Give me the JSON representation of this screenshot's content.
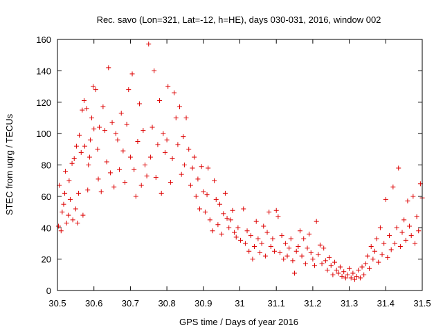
{
  "chart_data": {
    "type": "scatter",
    "title": "Rec. savo (Lon=321, Lat=-12, h=HE), days 030-031, 2016, window 002",
    "xlabel": "GPS time / Days of year 2016",
    "ylabel": "STEC from uqrg / TECUs",
    "xlim": [
      30.5,
      31.5
    ],
    "ylim": [
      0,
      160
    ],
    "xticks": [
      30.5,
      30.6,
      30.7,
      30.8,
      30.9,
      31,
      31.1,
      31.2,
      31.3,
      31.4,
      31.5
    ],
    "xtick_labels": [
      "30.5",
      "30.6",
      "30.7",
      "30.8",
      "30.9",
      "31",
      "31.1",
      "31.2",
      "31.3",
      "31.4",
      "31.5"
    ],
    "yticks": [
      0,
      20,
      40,
      60,
      80,
      100,
      120,
      140,
      160
    ],
    "ytick_labels": [
      "0",
      "20",
      "40",
      "60",
      "80",
      "100",
      "120",
      "140",
      "160"
    ],
    "grid": false,
    "marker": "+",
    "color": "#dd0000",
    "series": [
      {
        "name": "STEC",
        "points": [
          [
            30.503,
            41
          ],
          [
            30.505,
            67
          ],
          [
            30.51,
            38
          ],
          [
            30.513,
            50
          ],
          [
            30.517,
            55
          ],
          [
            30.52,
            62
          ],
          [
            30.522,
            76
          ],
          [
            30.525,
            43
          ],
          [
            30.53,
            48
          ],
          [
            30.532,
            70
          ],
          [
            30.535,
            58
          ],
          [
            30.54,
            81
          ],
          [
            30.542,
            45
          ],
          [
            30.546,
            84
          ],
          [
            30.55,
            52
          ],
          [
            30.552,
            92
          ],
          [
            30.555,
            43
          ],
          [
            30.558,
            62
          ],
          [
            30.56,
            99
          ],
          [
            30.565,
            88
          ],
          [
            30.568,
            115
          ],
          [
            30.57,
            48
          ],
          [
            30.573,
            121
          ],
          [
            30.575,
            92
          ],
          [
            30.58,
            116
          ],
          [
            30.583,
            64
          ],
          [
            30.585,
            80
          ],
          [
            30.588,
            85
          ],
          [
            30.59,
            96
          ],
          [
            30.594,
            110
          ],
          [
            30.598,
            130
          ],
          [
            30.6,
            103
          ],
          [
            30.605,
            128
          ],
          [
            30.61,
            90
          ],
          [
            30.612,
            71
          ],
          [
            30.615,
            104
          ],
          [
            30.62,
            63
          ],
          [
            30.625,
            117
          ],
          [
            30.63,
            102
          ],
          [
            30.635,
            82
          ],
          [
            30.64,
            142
          ],
          [
            30.645,
            75
          ],
          [
            30.65,
            107
          ],
          [
            30.655,
            66
          ],
          [
            30.66,
            100
          ],
          [
            30.665,
            96
          ],
          [
            30.67,
            77
          ],
          [
            30.675,
            113
          ],
          [
            30.68,
            89
          ],
          [
            30.685,
            69
          ],
          [
            30.69,
            106
          ],
          [
            30.695,
            128
          ],
          [
            30.7,
            85
          ],
          [
            30.705,
            138
          ],
          [
            30.71,
            77
          ],
          [
            30.715,
            60
          ],
          [
            30.72,
            95
          ],
          [
            30.725,
            119
          ],
          [
            30.73,
            67
          ],
          [
            30.735,
            102
          ],
          [
            30.74,
            80
          ],
          [
            30.745,
            73
          ],
          [
            30.75,
            157
          ],
          [
            30.755,
            85
          ],
          [
            30.76,
            104
          ],
          [
            30.765,
            140
          ],
          [
            30.77,
            72
          ],
          [
            30.775,
            93
          ],
          [
            30.78,
            121
          ],
          [
            30.785,
            62
          ],
          [
            30.79,
            100
          ],
          [
            30.795,
            88
          ],
          [
            30.8,
            96
          ],
          [
            30.803,
            130
          ],
          [
            30.81,
            69
          ],
          [
            30.815,
            84
          ],
          [
            30.82,
            126
          ],
          [
            30.825,
            110
          ],
          [
            30.83,
            93
          ],
          [
            30.835,
            117
          ],
          [
            30.84,
            74
          ],
          [
            30.845,
            98
          ],
          [
            30.848,
            80
          ],
          [
            30.853,
            110
          ],
          [
            30.86,
            90
          ],
          [
            30.865,
            67
          ],
          [
            30.87,
            78
          ],
          [
            30.875,
            85
          ],
          [
            30.88,
            60
          ],
          [
            30.885,
            71
          ],
          [
            30.89,
            52
          ],
          [
            30.895,
            79
          ],
          [
            30.9,
            63
          ],
          [
            30.905,
            50
          ],
          [
            30.91,
            61
          ],
          [
            30.913,
            78
          ],
          [
            30.918,
            45
          ],
          [
            30.925,
            38
          ],
          [
            30.93,
            70
          ],
          [
            30.935,
            58
          ],
          [
            30.94,
            42
          ],
          [
            30.945,
            55
          ],
          [
            30.95,
            36
          ],
          [
            30.955,
            49
          ],
          [
            30.96,
            62
          ],
          [
            30.965,
            46
          ],
          [
            30.97,
            40
          ],
          [
            30.975,
            45
          ],
          [
            30.98,
            51
          ],
          [
            30.985,
            37
          ],
          [
            30.99,
            34
          ],
          [
            30.995,
            40
          ],
          [
            31.002,
            32
          ],
          [
            31.01,
            52
          ],
          [
            31.015,
            30
          ],
          [
            31.02,
            38
          ],
          [
            31.025,
            25
          ],
          [
            31.03,
            35
          ],
          [
            31.035,
            20
          ],
          [
            31.04,
            28
          ],
          [
            31.045,
            44
          ],
          [
            31.05,
            33
          ],
          [
            31.055,
            24
          ],
          [
            31.06,
            30
          ],
          [
            31.065,
            41
          ],
          [
            31.07,
            22
          ],
          [
            31.075,
            37
          ],
          [
            31.08,
            50
          ],
          [
            31.085,
            28
          ],
          [
            31.09,
            33
          ],
          [
            31.095,
            25
          ],
          [
            31.1,
            51
          ],
          [
            31.105,
            47
          ],
          [
            31.11,
            24
          ],
          [
            31.115,
            35
          ],
          [
            31.12,
            20
          ],
          [
            31.125,
            30
          ],
          [
            31.13,
            22
          ],
          [
            31.135,
            27
          ],
          [
            31.14,
            33
          ],
          [
            31.145,
            19
          ],
          [
            31.15,
            11
          ],
          [
            31.155,
            25
          ],
          [
            31.16,
            28
          ],
          [
            31.165,
            38
          ],
          [
            31.17,
            22
          ],
          [
            31.175,
            33
          ],
          [
            31.18,
            17
          ],
          [
            31.185,
            27
          ],
          [
            31.19,
            36
          ],
          [
            31.195,
            24
          ],
          [
            31.2,
            20
          ],
          [
            31.205,
            16
          ],
          [
            31.21,
            44
          ],
          [
            31.215,
            23
          ],
          [
            31.22,
            29
          ],
          [
            31.225,
            17
          ],
          [
            31.23,
            27
          ],
          [
            31.235,
            19
          ],
          [
            31.24,
            13
          ],
          [
            31.245,
            21
          ],
          [
            31.25,
            16
          ],
          [
            31.255,
            10
          ],
          [
            31.26,
            18
          ],
          [
            31.265,
            13
          ],
          [
            31.27,
            11
          ],
          [
            31.275,
            15
          ],
          [
            31.28,
            9
          ],
          [
            31.285,
            12
          ],
          [
            31.29,
            8
          ],
          [
            31.295,
            10
          ],
          [
            31.3,
            14
          ],
          [
            31.305,
            8
          ],
          [
            31.31,
            11
          ],
          [
            31.315,
            7
          ],
          [
            31.32,
            9
          ],
          [
            31.325,
            13
          ],
          [
            31.33,
            8
          ],
          [
            31.335,
            15
          ],
          [
            31.34,
            10
          ],
          [
            31.345,
            17
          ],
          [
            31.35,
            22
          ],
          [
            31.355,
            14
          ],
          [
            31.36,
            28
          ],
          [
            31.365,
            20
          ],
          [
            31.37,
            25
          ],
          [
            31.375,
            33
          ],
          [
            31.38,
            18
          ],
          [
            31.385,
            40
          ],
          [
            31.39,
            23
          ],
          [
            31.395,
            30
          ],
          [
            31.4,
            58
          ],
          [
            31.405,
            21
          ],
          [
            31.41,
            35
          ],
          [
            31.415,
            26
          ],
          [
            31.42,
            66
          ],
          [
            31.425,
            30
          ],
          [
            31.43,
            40
          ],
          [
            31.435,
            78
          ],
          [
            31.44,
            28
          ],
          [
            31.445,
            37
          ],
          [
            31.45,
            45
          ],
          [
            31.455,
            32
          ],
          [
            31.46,
            57
          ],
          [
            31.465,
            41
          ],
          [
            31.47,
            35
          ],
          [
            31.475,
            60
          ],
          [
            31.48,
            30
          ],
          [
            31.485,
            47
          ],
          [
            31.49,
            38
          ],
          [
            31.495,
            68
          ],
          [
            31.5,
            59
          ]
        ]
      }
    ]
  }
}
